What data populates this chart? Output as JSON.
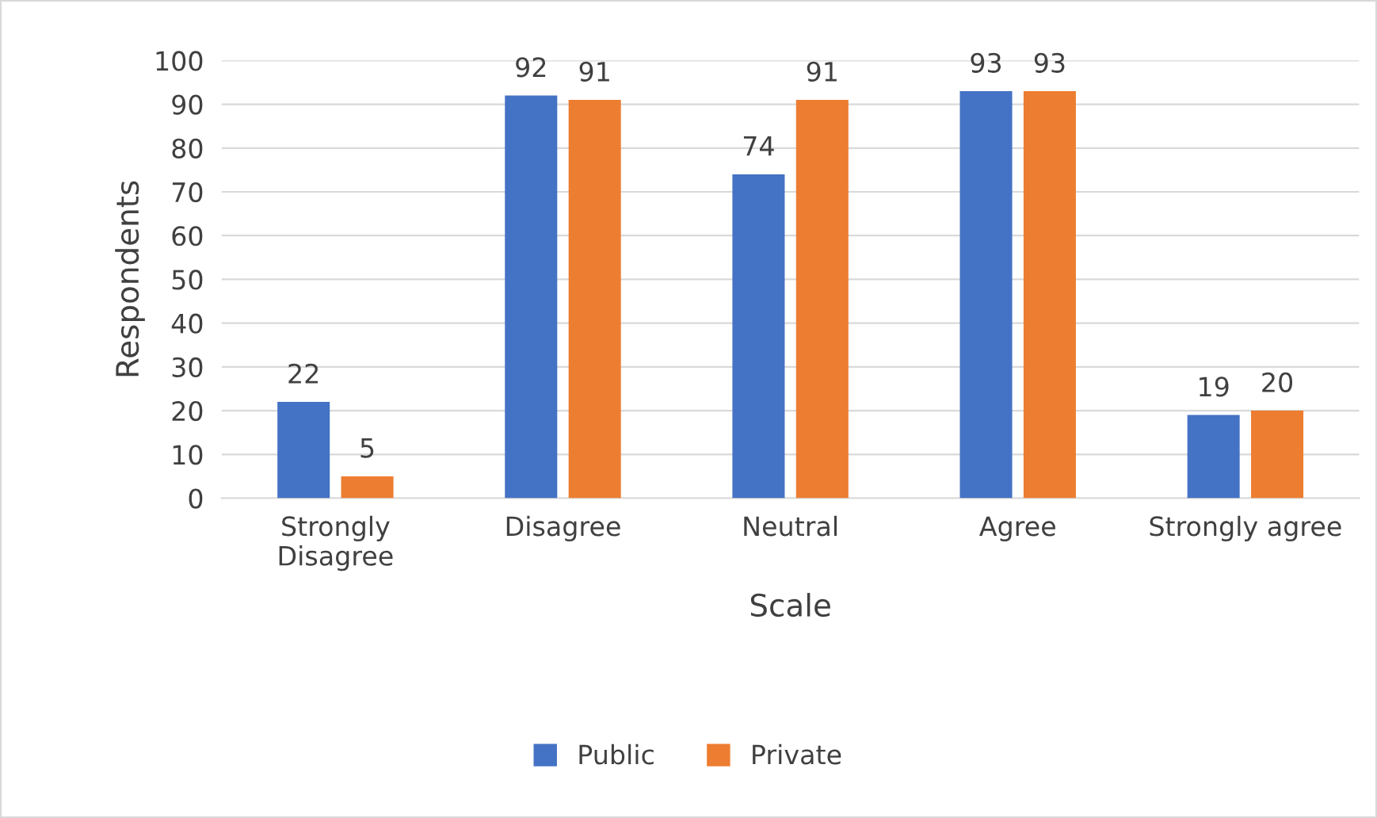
{
  "chart_data": {
    "type": "bar",
    "xlabel": "Scale",
    "ylabel": "Respondents",
    "categories": [
      "Strongly\nDisagree",
      "Disagree",
      "Neutral",
      "Agree",
      "Strongly agree"
    ],
    "series": [
      {
        "name": "Public",
        "color": "#4472c4",
        "values": [
          22,
          92,
          74,
          93,
          19
        ]
      },
      {
        "name": "Private",
        "color": "#ed7d31",
        "values": [
          5,
          91,
          91,
          93,
          20
        ]
      }
    ],
    "ylim": [
      0,
      100
    ],
    "yticks": [
      0,
      10,
      20,
      30,
      40,
      50,
      60,
      70,
      80,
      90,
      100
    ],
    "grid": "y",
    "legend": "bottom",
    "data_labels": true
  }
}
